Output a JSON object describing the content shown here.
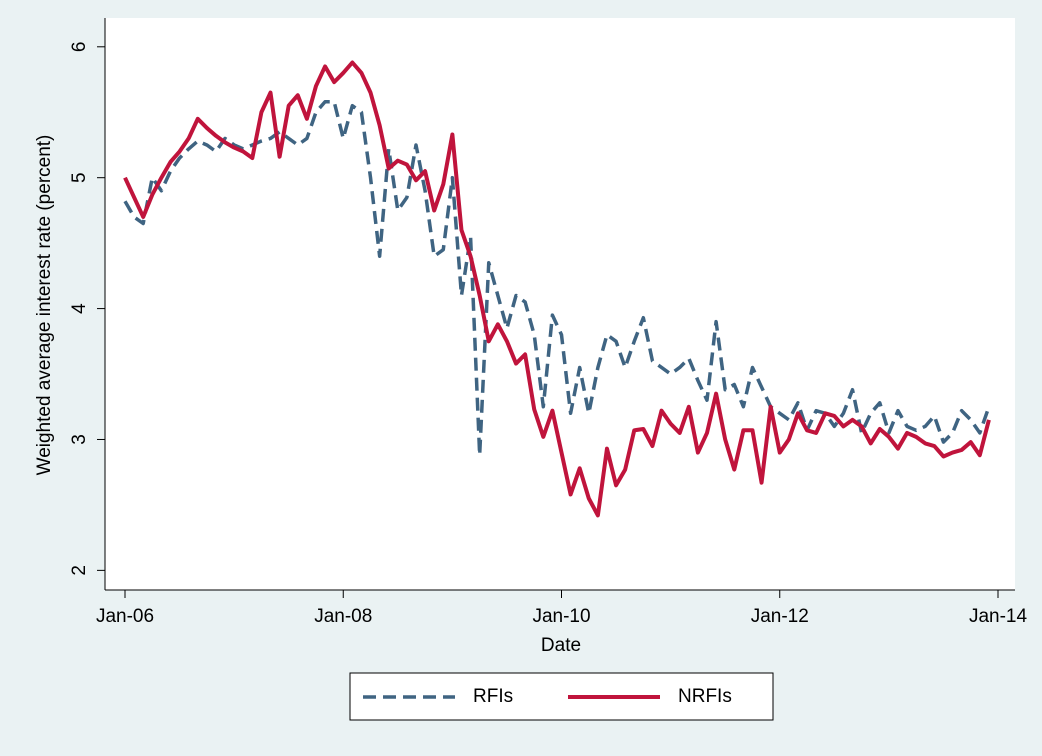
{
  "chart_data": {
    "type": "line",
    "y_label": "Weighted average interest rate (percent)",
    "x_label": "Date",
    "x": [
      "2006-01",
      "2006-02",
      "2006-03",
      "2006-04",
      "2006-05",
      "2006-06",
      "2006-07",
      "2006-08",
      "2006-09",
      "2006-10",
      "2006-11",
      "2006-12",
      "2007-01",
      "2007-02",
      "2007-03",
      "2007-04",
      "2007-05",
      "2007-06",
      "2007-07",
      "2007-08",
      "2007-09",
      "2007-10",
      "2007-11",
      "2007-12",
      "2008-01",
      "2008-02",
      "2008-03",
      "2008-04",
      "2008-05",
      "2008-06",
      "2008-07",
      "2008-08",
      "2008-09",
      "2008-10",
      "2008-11",
      "2008-12",
      "2009-01",
      "2009-02",
      "2009-03",
      "2009-04",
      "2009-05",
      "2009-06",
      "2009-07",
      "2009-08",
      "2009-09",
      "2009-10",
      "2009-11",
      "2009-12",
      "2010-01",
      "2010-02",
      "2010-03",
      "2010-04",
      "2010-05",
      "2010-06",
      "2010-07",
      "2010-08",
      "2010-09",
      "2010-10",
      "2010-11",
      "2010-12",
      "2011-01",
      "2011-02",
      "2011-03",
      "2011-04",
      "2011-05",
      "2011-06",
      "2011-07",
      "2011-08",
      "2011-09",
      "2011-10",
      "2011-11",
      "2011-12",
      "2012-01",
      "2012-02",
      "2012-03",
      "2012-04",
      "2012-05",
      "2012-06",
      "2012-07",
      "2012-08",
      "2012-09",
      "2012-10",
      "2012-11",
      "2012-12",
      "2013-01",
      "2013-02",
      "2013-03",
      "2013-04",
      "2013-05",
      "2013-06",
      "2013-07",
      "2013-08",
      "2013-09",
      "2013-10",
      "2013-11",
      "2013-12"
    ],
    "series": [
      {
        "name": "RFIs",
        "color": "#3f6482",
        "style": "dashed",
        "values": [
          4.82,
          4.7,
          4.65,
          5.0,
          4.9,
          5.05,
          5.15,
          5.22,
          5.28,
          5.25,
          5.2,
          5.3,
          5.25,
          5.22,
          5.25,
          5.28,
          5.3,
          5.35,
          5.3,
          5.25,
          5.3,
          5.5,
          5.58,
          5.58,
          5.3,
          5.55,
          5.5,
          5.0,
          4.4,
          5.22,
          4.75,
          4.85,
          5.25,
          4.9,
          4.4,
          4.45,
          5.0,
          4.1,
          4.55,
          2.88,
          4.35,
          4.1,
          3.85,
          4.1,
          4.05,
          3.8,
          3.25,
          3.95,
          3.8,
          3.2,
          3.55,
          3.2,
          3.55,
          3.8,
          3.75,
          3.55,
          3.75,
          3.93,
          3.6,
          3.55,
          3.5,
          3.55,
          3.62,
          3.45,
          3.3,
          3.9,
          3.38,
          3.42,
          3.25,
          3.55,
          3.4,
          3.25,
          3.2,
          3.15,
          3.28,
          3.07,
          3.22,
          3.2,
          3.1,
          3.2,
          3.38,
          3.05,
          3.2,
          3.28,
          3.05,
          3.22,
          3.1,
          3.07,
          3.1,
          3.18,
          2.98,
          3.05,
          3.22,
          3.15,
          3.05,
          3.25
        ]
      },
      {
        "name": "NRFIs",
        "color": "#c0143c",
        "style": "solid",
        "values": [
          5.0,
          4.85,
          4.7,
          4.87,
          5.0,
          5.12,
          5.2,
          5.3,
          5.45,
          5.38,
          5.32,
          5.27,
          5.23,
          5.2,
          5.15,
          5.5,
          5.65,
          5.16,
          5.55,
          5.63,
          5.45,
          5.7,
          5.85,
          5.73,
          5.8,
          5.88,
          5.8,
          5.65,
          5.4,
          5.07,
          5.13,
          5.1,
          4.98,
          5.05,
          4.75,
          4.95,
          5.33,
          4.6,
          4.4,
          4.1,
          3.75,
          3.88,
          3.75,
          3.58,
          3.65,
          3.23,
          3.02,
          3.22,
          2.9,
          2.58,
          2.78,
          2.55,
          2.42,
          2.93,
          2.65,
          2.77,
          3.07,
          3.08,
          2.95,
          3.22,
          3.12,
          3.05,
          3.25,
          2.9,
          3.05,
          3.35,
          3.0,
          2.77,
          3.07,
          3.07,
          2.67,
          3.25,
          2.9,
          3.0,
          3.2,
          3.07,
          3.05,
          3.2,
          3.18,
          3.1,
          3.15,
          3.1,
          2.97,
          3.08,
          3.02,
          2.93,
          3.05,
          3.02,
          2.97,
          2.95,
          2.87,
          2.9,
          2.92,
          2.98,
          2.88,
          3.15
        ]
      }
    ],
    "xlim": [
      "2006-01",
      "2014-01"
    ],
    "xticks": [
      {
        "value": "2006-01",
        "label": "Jan-06"
      },
      {
        "value": "2008-01",
        "label": "Jan-08"
      },
      {
        "value": "2010-01",
        "label": "Jan-10"
      },
      {
        "value": "2012-01",
        "label": "Jan-12"
      },
      {
        "value": "2014-01",
        "label": "Jan-14"
      }
    ],
    "ylim": [
      1.85,
      6.22
    ],
    "yticks": [
      2,
      3,
      4,
      5,
      6
    ],
    "grid": false,
    "legend": "bottom"
  }
}
